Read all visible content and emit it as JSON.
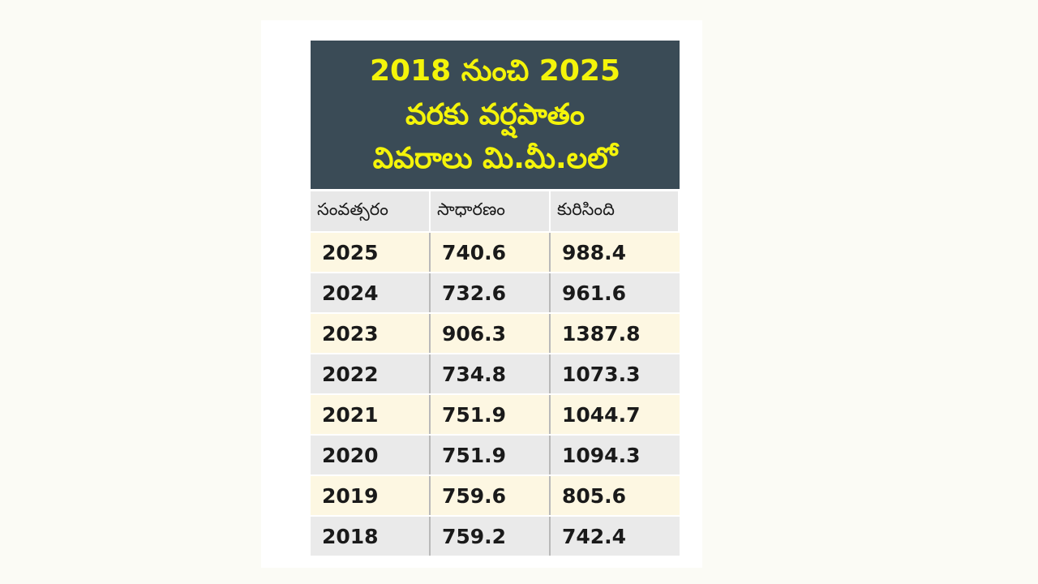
{
  "title": {
    "lines": [
      "2018 నుంచి 2025",
      "వరకు వర్షపాతం",
      "వివరాలు మి.మీ.లలో"
    ]
  },
  "table": {
    "header": [
      "సంవత్సరం",
      "సాధారణం",
      "కురిసింది"
    ],
    "rows": [
      [
        "2025",
        "740.6",
        "988.4"
      ],
      [
        "2024",
        "732.6",
        "961.6"
      ],
      [
        "2023",
        "906.3",
        "1387.8"
      ],
      [
        "2022",
        "734.8",
        "1073.3"
      ],
      [
        "2021",
        "751.9",
        "1044.7"
      ],
      [
        "2020",
        "751.9",
        "1094.3"
      ],
      [
        "2019",
        "759.6",
        "805.6"
      ],
      [
        "2018",
        "759.2",
        "742.4"
      ]
    ]
  }
}
